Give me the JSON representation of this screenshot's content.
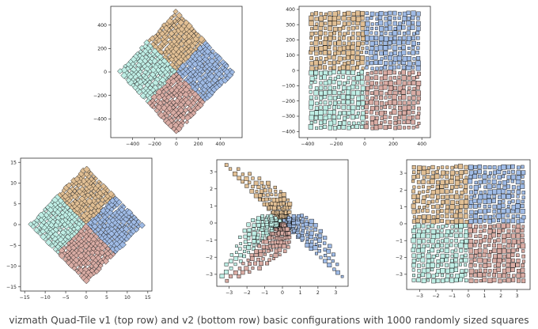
{
  "colors": {
    "q1": "#e1bf94",
    "q2": "#9fbbe6",
    "q3": "#bfeee5",
    "q4": "#d9aca4",
    "edge": "#111111"
  },
  "caption": "vizmath Quad-Tile v1 (top row) and v2 (bottom row) basic configurations with 1000 randomly sized squares",
  "chart_data": [
    {
      "type": "scatter",
      "version": "v1",
      "layout": "diamond",
      "xlim": [
        -600,
        600
      ],
      "ylim": [
        -560,
        560
      ],
      "xticks": [
        -400,
        -200,
        0,
        200,
        400
      ],
      "yticks": [
        -400,
        -200,
        0,
        200,
        400
      ],
      "extent": 530,
      "grid_cells": 12,
      "square_count": 1000,
      "series": [
        {
          "quadrant": "top",
          "color": "#e1bf94"
        },
        {
          "quadrant": "right",
          "color": "#9fbbe6"
        },
        {
          "quadrant": "left",
          "color": "#bfeee5"
        },
        {
          "quadrant": "bottom",
          "color": "#d9aca4"
        }
      ]
    },
    {
      "type": "scatter",
      "version": "v1",
      "layout": "square",
      "xlim": [
        -460,
        460
      ],
      "ylim": [
        -440,
        420
      ],
      "xticks": [
        -400,
        -200,
        0,
        200,
        400
      ],
      "yticks": [
        -400,
        -300,
        -200,
        -100,
        0,
        100,
        200,
        300,
        400
      ],
      "extent": 390,
      "grid_cells": 12,
      "square_count": 1000,
      "series": [
        {
          "quadrant": "top-left",
          "color": "#e1bf94"
        },
        {
          "quadrant": "top-right",
          "color": "#9fbbe6"
        },
        {
          "quadrant": "bottom-left",
          "color": "#bfeee5"
        },
        {
          "quadrant": "bottom-right",
          "color": "#d9aca4"
        }
      ]
    },
    {
      "type": "scatter",
      "version": "v2",
      "layout": "diamond",
      "xlim": [
        -16,
        16
      ],
      "ylim": [
        -16,
        16
      ],
      "xticks": [
        -15,
        -10,
        -5,
        0,
        5,
        10,
        15
      ],
      "yticks": [
        -15,
        -10,
        -5,
        0,
        5,
        10,
        15
      ],
      "extent": 14,
      "grid_cells": 12,
      "square_count": 1000,
      "series": [
        {
          "quadrant": "top",
          "color": "#e1bf94"
        },
        {
          "quadrant": "right",
          "color": "#9fbbe6"
        },
        {
          "quadrant": "left",
          "color": "#bfeee5"
        },
        {
          "quadrant": "bottom",
          "color": "#d9aca4"
        }
      ]
    },
    {
      "type": "scatter",
      "version": "v2",
      "layout": "triangles",
      "xlim": [
        -3.7,
        3.7
      ],
      "ylim": [
        -3.7,
        3.7
      ],
      "xticks": [
        -3,
        -2,
        -1,
        0,
        1,
        2,
        3
      ],
      "yticks": [
        -3,
        -2,
        -1,
        0,
        1,
        2,
        3
      ],
      "extent": 3.5,
      "grid_cells": 14,
      "square_count": 1000,
      "series": [
        {
          "quadrant": "top",
          "color": "#e1bf94"
        },
        {
          "quadrant": "right",
          "color": "#9fbbe6"
        },
        {
          "quadrant": "left",
          "color": "#bfeee5"
        },
        {
          "quadrant": "bottom",
          "color": "#d9aca4"
        }
      ]
    },
    {
      "type": "scatter",
      "version": "v2",
      "layout": "square",
      "xlim": [
        -3.8,
        3.8
      ],
      "ylim": [
        -3.9,
        3.8
      ],
      "xticks": [
        -3,
        -2,
        -1,
        0,
        1,
        2,
        3
      ],
      "yticks": [
        -3,
        -2,
        -1,
        0,
        1,
        2,
        3
      ],
      "extent": 3.5,
      "grid_cells": 12,
      "square_count": 1000,
      "series": [
        {
          "quadrant": "top-left",
          "color": "#e1bf94"
        },
        {
          "quadrant": "top-right",
          "color": "#9fbbe6"
        },
        {
          "quadrant": "bottom-left",
          "color": "#bfeee5"
        },
        {
          "quadrant": "bottom-right",
          "color": "#d9aca4"
        }
      ]
    }
  ]
}
